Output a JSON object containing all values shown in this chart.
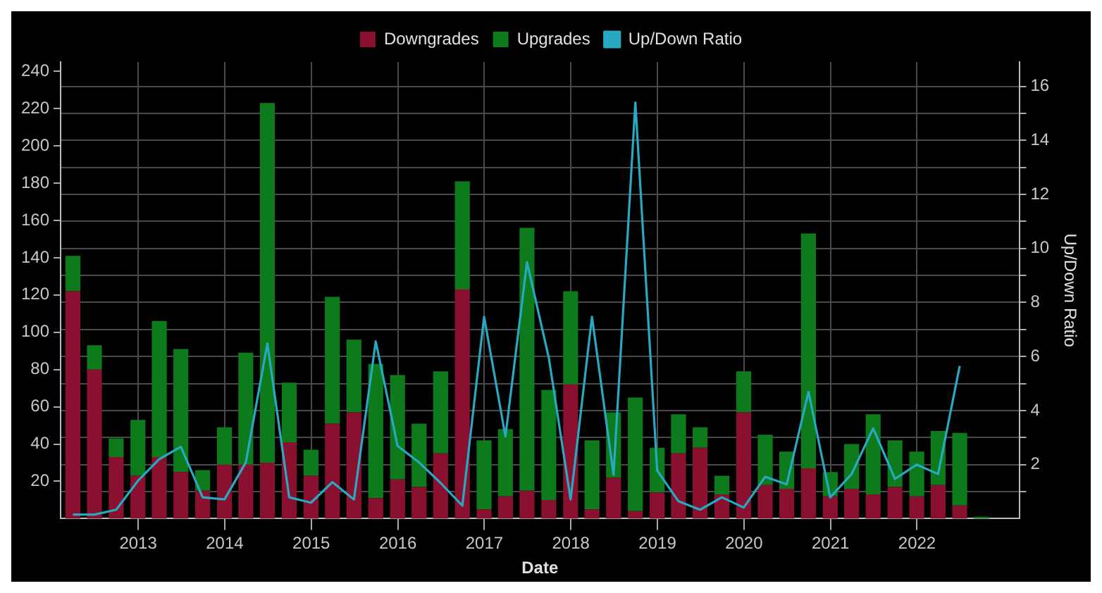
{
  "chart_data": {
    "type": "bar",
    "stacked": true,
    "xlabel": "Date",
    "y2label": "Up/Down Ratio",
    "x": [
      "2012-03-31",
      "2012-06-30",
      "2012-09-30",
      "2012-12-31",
      "2013-03-31",
      "2013-06-30",
      "2013-09-30",
      "2013-12-31",
      "2014-03-31",
      "2014-06-30",
      "2014-09-30",
      "2014-12-31",
      "2015-03-31",
      "2015-06-30",
      "2015-09-30",
      "2015-12-31",
      "2016-03-31",
      "2016-06-30",
      "2016-09-30",
      "2016-12-31",
      "2017-03-31",
      "2017-06-30",
      "2017-09-30",
      "2017-12-31",
      "2018-03-31",
      "2018-06-30",
      "2018-09-30",
      "2018-12-31",
      "2019-03-31",
      "2019-06-30",
      "2019-09-30",
      "2019-12-31",
      "2020-03-31",
      "2020-06-30",
      "2020-09-30",
      "2020-12-31",
      "2021-03-31",
      "2021-06-30",
      "2021-09-30",
      "2021-12-31",
      "2022-03-31",
      "2022-06-30",
      "2022-09-30"
    ],
    "series": [
      {
        "name": "Downgrades",
        "color": "#8a1030",
        "values": [
          122,
          80,
          33,
          23,
          33,
          25,
          15,
          29,
          29,
          30,
          41,
          23,
          51,
          57,
          11,
          21,
          17,
          35,
          123,
          5,
          12,
          15,
          10,
          72,
          5,
          22,
          4,
          14,
          35,
          38,
          13,
          57,
          18,
          16,
          27,
          12,
          16,
          13,
          17,
          12,
          18,
          7,
          0
        ]
      },
      {
        "name": "Upgrades",
        "color": "#0d7a1c",
        "values": [
          19,
          13,
          10,
          30,
          73,
          66,
          11,
          20,
          60,
          193,
          32,
          14,
          68,
          39,
          72,
          56,
          34,
          44,
          58,
          37,
          36,
          141,
          59,
          50,
          37,
          35,
          61,
          24,
          21,
          11,
          10,
          22,
          27,
          20,
          126,
          13,
          24,
          43,
          25,
          24,
          29,
          39,
          1
        ]
      },
      {
        "name": "Up/Down Ratio",
        "type": "line",
        "axis": "y2",
        "color": "#29a8c2",
        "values": [
          0.15,
          0.15,
          0.33,
          1.4,
          2.2,
          2.66,
          0.79,
          0.71,
          2.08,
          6.48,
          0.79,
          0.59,
          1.35,
          0.71,
          6.56,
          2.69,
          2.08,
          1.32,
          0.48,
          7.47,
          3.04,
          9.49,
          5.95,
          0.71,
          7.47,
          1.62,
          15.4,
          1.78,
          0.64,
          0.33,
          0.79,
          0.41,
          1.55,
          1.27,
          4.69,
          0.79,
          1.65,
          3.34,
          1.47,
          2.0,
          1.65,
          5.65,
          null
        ]
      }
    ],
    "xlim": [
      "2012-02-08",
      "2023-03-08"
    ],
    "xticks": [
      "2013",
      "2014",
      "2015",
      "2016",
      "2017",
      "2018",
      "2019",
      "2020",
      "2021",
      "2022"
    ],
    "ylim": [
      0,
      245
    ],
    "yticks": [
      20,
      40,
      60,
      80,
      100,
      120,
      140,
      160,
      180,
      200,
      220,
      240
    ],
    "y2lim": [
      0,
      16.9
    ],
    "y2ticks": [
      {
        "value": 1,
        "label": null
      },
      2,
      {
        "value": 3,
        "label": null
      },
      4,
      {
        "value": 5,
        "label": null
      },
      6,
      {
        "value": 7,
        "label": null
      },
      8,
      {
        "value": 9,
        "label": null
      },
      10,
      {
        "value": 11,
        "label": null
      },
      12,
      {
        "value": 13,
        "label": null
      },
      14,
      {
        "value": 15,
        "label": null
      },
      16
    ],
    "grid": true,
    "legend": "top"
  }
}
